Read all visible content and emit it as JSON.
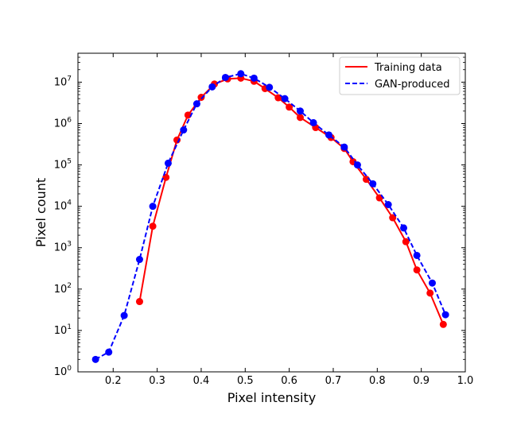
{
  "chart_data": {
    "type": "line",
    "xlabel": "Pixel intensity",
    "ylabel": "Pixel count",
    "xlim": [
      0.12,
      1.0
    ],
    "ylim": [
      1,
      50000000
    ],
    "y_scale": "log",
    "grid": false,
    "legend_position": "top-right",
    "x_ticks": [
      0.2,
      0.3,
      0.4,
      0.5,
      0.6,
      0.7,
      0.8,
      0.9,
      1.0
    ],
    "x_tick_labels": [
      "0.2",
      "0.3",
      "0.4",
      "0.5",
      "0.6",
      "0.7",
      "0.8",
      "0.9",
      "1.0"
    ],
    "y_tick_exponents": [
      0,
      1,
      2,
      3,
      4,
      5,
      6,
      7
    ],
    "y_tick_base": "10",
    "series": [
      {
        "name": "Training data",
        "color": "#ff0000",
        "line_style": "solid",
        "x": [
          0.26,
          0.29,
          0.32,
          0.345,
          0.37,
          0.4,
          0.43,
          0.46,
          0.49,
          0.52,
          0.545,
          0.575,
          0.6,
          0.625,
          0.66,
          0.695,
          0.725,
          0.745,
          0.775,
          0.805,
          0.835,
          0.865,
          0.89,
          0.92,
          0.95
        ],
        "y": [
          50,
          3300,
          50000,
          400000,
          1600000,
          4300000,
          9000000,
          12000000,
          12500000,
          10500000,
          7000000,
          4200000,
          2500000,
          1400000,
          800000,
          460000,
          250000,
          120000,
          45000,
          16000,
          5300,
          1400,
          290,
          80,
          14
        ]
      },
      {
        "name": "GAN-produced",
        "color": "#0000ff",
        "line_style": "dashed",
        "x": [
          0.16,
          0.19,
          0.225,
          0.26,
          0.29,
          0.325,
          0.36,
          0.39,
          0.425,
          0.455,
          0.49,
          0.52,
          0.555,
          0.59,
          0.625,
          0.655,
          0.69,
          0.725,
          0.755,
          0.79,
          0.825,
          0.86,
          0.89,
          0.925,
          0.955
        ],
        "y": [
          2,
          3,
          23,
          520,
          10000,
          110000,
          700000,
          3000000,
          7700000,
          13000000,
          16000000,
          12500000,
          7500000,
          4000000,
          2000000,
          1050000,
          530000,
          270000,
          100000,
          35000,
          11000,
          3000,
          650,
          140,
          24
        ]
      }
    ]
  }
}
